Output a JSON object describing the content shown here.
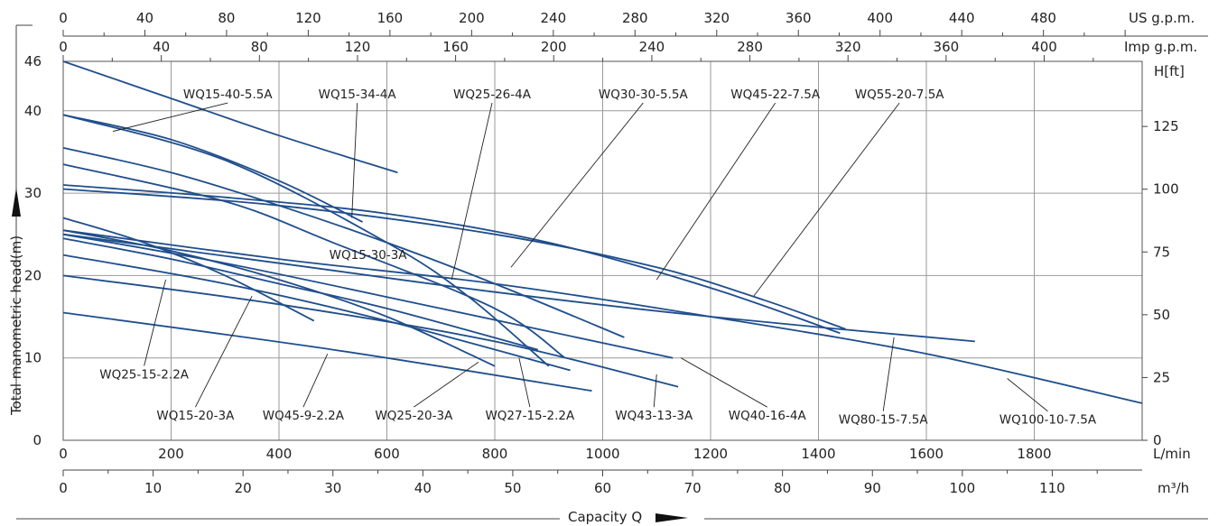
{
  "chart_data": {
    "type": "line",
    "title": "",
    "xlabel": "Capacity Q",
    "ylabel": "Total manometric head(m)",
    "units": {
      "x_primary": "L/min",
      "x_m3h": "m³/h",
      "x_us": "US g.p.m.",
      "x_imp": "Imp g.p.m.",
      "y_primary": "",
      "y_ft": "H[ft]"
    },
    "xlim": [
      0,
      2000
    ],
    "ylim": [
      0,
      46
    ],
    "x_ticks": [
      0,
      200,
      400,
      600,
      800,
      1000,
      1200,
      1400,
      1600,
      1800
    ],
    "x_ticks_m3h": [
      0,
      10,
      20,
      30,
      40,
      50,
      60,
      70,
      80,
      90,
      100,
      110
    ],
    "x_ticks_us": [
      0,
      40,
      80,
      120,
      160,
      200,
      240,
      280,
      320,
      360,
      400,
      440,
      480
    ],
    "x_ticks_imp": [
      0,
      40,
      80,
      120,
      160,
      200,
      240,
      280,
      320,
      360,
      400
    ],
    "y_ticks": [
      0,
      10,
      20,
      30,
      40,
      46
    ],
    "y_ticks_ft": [
      0,
      25,
      50,
      75,
      100,
      125
    ],
    "grid": true,
    "series": [
      {
        "name": "WQ15-40-5.5A",
        "x": [
          0,
          200,
          400,
          620
        ],
        "y": [
          46,
          41.5,
          37,
          32.5
        ],
        "label_at": [
          92,
          37.5
        ]
      },
      {
        "name": "WQ15-34-4A",
        "x": [
          0,
          200,
          400,
          555
        ],
        "y": [
          39.5,
          36.5,
          31.5,
          26.5
        ],
        "label_at": [
          535,
          27
        ]
      },
      {
        "name": "WQ25-26-4A",
        "x": [
          0,
          300,
          600,
          750,
          900
        ],
        "y": [
          39.5,
          34,
          24,
          17.5,
          9
        ],
        "label_at": [
          720,
          19.5
        ]
      },
      {
        "name": "WQ30-30-5.5A",
        "x": [
          0,
          200,
          400,
          600,
          800,
          1040
        ],
        "y": [
          35.5,
          32.5,
          28.5,
          24,
          19,
          12.5
        ],
        "label_at": [
          830,
          21
        ]
      },
      {
        "name": "WQ45-22-7.5A",
        "x": [
          0,
          300,
          600,
          900,
          1200,
          1440
        ],
        "y": [
          31,
          29.5,
          27.5,
          24,
          18.5,
          13
        ],
        "label_at": [
          1100,
          19.5
        ]
      },
      {
        "name": "WQ55-20-7.5A",
        "x": [
          0,
          400,
          800,
          1100,
          1300,
          1450
        ],
        "y": [
          30.5,
          28.5,
          25,
          21,
          17,
          13.5
        ],
        "label_at": [
          1280,
          17.5
        ]
      },
      {
        "name": "WQ15-30-3A",
        "x": [
          0,
          300,
          500,
          800,
          930
        ],
        "y": [
          33.5,
          29,
          24,
          16,
          10
        ],
        "label_at": [
          565,
          22
        ]
      },
      {
        "name": "WQ25-15-2.2A",
        "x": [
          0,
          200,
          400,
          600,
          880
        ],
        "y": [
          24.5,
          22,
          19,
          16,
          11
        ],
        "label_at": [
          190,
          19.5
        ]
      },
      {
        "name": "WQ15-20-3A",
        "x": [
          0,
          150,
          300,
          465
        ],
        "y": [
          27,
          24,
          20,
          14.5
        ],
        "label_at": [
          350,
          17.5
        ]
      },
      {
        "name": "WQ45-9-2.2A",
        "x": [
          0,
          500,
          980
        ],
        "y": [
          15.5,
          11,
          6
        ],
        "label_at": [
          490,
          10.5
        ]
      },
      {
        "name": "WQ25-20-3A",
        "x": [
          0,
          200,
          400,
          600,
          800
        ],
        "y": [
          25.5,
          23,
          19.5,
          15,
          9
        ],
        "label_at": [
          770,
          9.5
        ]
      },
      {
        "name": "WQ27-15-2.2A",
        "x": [
          0,
          300,
          600,
          940
        ],
        "y": [
          22.5,
          19,
          14.5,
          8.5
        ],
        "label_at": [
          845,
          10
        ]
      },
      {
        "name": "WQ43-13-3A",
        "x": [
          0,
          400,
          800,
          1140
        ],
        "y": [
          20,
          16.5,
          12,
          6.5
        ],
        "label_at": [
          1100,
          8
        ]
      },
      {
        "name": "WQ40-16-4A",
        "x": [
          0,
          300,
          700,
          1130
        ],
        "y": [
          25,
          21.5,
          16,
          10
        ],
        "label_at": [
          1145,
          10
        ]
      },
      {
        "name": "WQ80-15-7.5A",
        "x": [
          0,
          400,
          800,
          1200,
          1690
        ],
        "y": [
          25,
          21.5,
          18,
          15,
          12
        ],
        "label_at": [
          1540,
          12.5
        ]
      },
      {
        "name": "WQ100-10-7.5A",
        "x": [
          0,
          400,
          800,
          1200,
          1600,
          2000
        ],
        "y": [
          25.5,
          22,
          19,
          15,
          10.5,
          4.5
        ],
        "label_at": [
          1750,
          7.5
        ]
      }
    ],
    "labels": [
      {
        "series": "WQ15-40-5.5A",
        "x": 305,
        "y": 41.5,
        "anchor": "middle"
      },
      {
        "series": "WQ15-34-4A",
        "x": 545,
        "y": 41.5,
        "anchor": "middle"
      },
      {
        "series": "WQ25-26-4A",
        "x": 795,
        "y": 41.5,
        "anchor": "middle"
      },
      {
        "series": "WQ30-30-5.5A",
        "x": 1075,
        "y": 41.5,
        "anchor": "middle"
      },
      {
        "series": "WQ45-22-7.5A",
        "x": 1320,
        "y": 41.5,
        "anchor": "middle"
      },
      {
        "series": "WQ55-20-7.5A",
        "x": 1550,
        "y": 41.5,
        "anchor": "middle"
      },
      {
        "series": "WQ15-30-3A",
        "x": 565,
        "y": 22,
        "anchor": "middle"
      },
      {
        "series": "WQ25-15-2.2A",
        "x": 150,
        "y": 7.5,
        "anchor": "middle"
      },
      {
        "series": "WQ15-20-3A",
        "x": 245,
        "y": 2.5,
        "anchor": "middle"
      },
      {
        "series": "WQ45-9-2.2A",
        "x": 445,
        "y": 2.5,
        "anchor": "middle"
      },
      {
        "series": "WQ25-20-3A",
        "x": 650,
        "y": 2.5,
        "anchor": "middle"
      },
      {
        "series": "WQ27-15-2.2A",
        "x": 865,
        "y": 2.5,
        "anchor": "middle"
      },
      {
        "series": "WQ43-13-3A",
        "x": 1095,
        "y": 2.5,
        "anchor": "middle"
      },
      {
        "series": "WQ40-16-4A",
        "x": 1305,
        "y": 2.5,
        "anchor": "middle"
      },
      {
        "series": "WQ80-15-7.5A",
        "x": 1520,
        "y": 2.0,
        "anchor": "middle"
      },
      {
        "series": "WQ100-10-7.5A",
        "x": 1825,
        "y": 2.0,
        "anchor": "middle"
      }
    ],
    "colors": {
      "curve": "#1f4e8c",
      "grid": "#9a9a9a",
      "text": "#222222"
    }
  }
}
